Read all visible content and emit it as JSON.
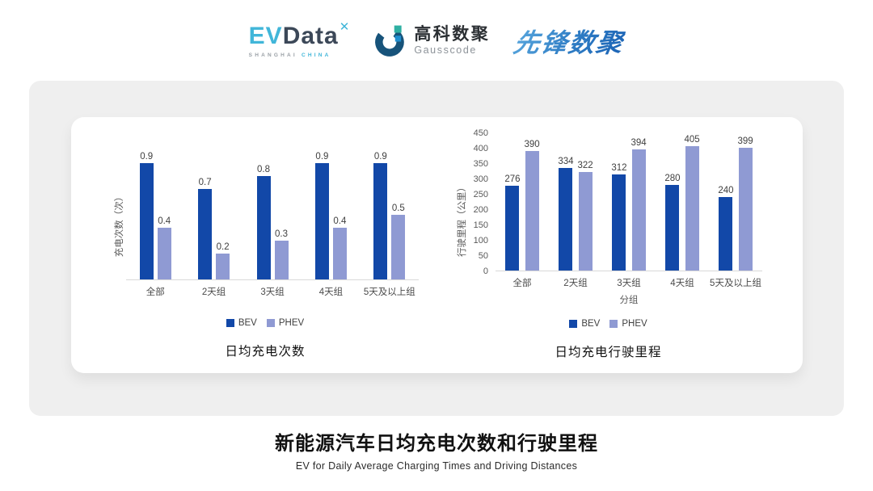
{
  "header": {
    "evdata": {
      "ev": "EV",
      "data": "Data",
      "x_icon": "✕",
      "sub_gray": "SHANGHAI",
      "sub_blue": "CHINA"
    },
    "gausscode": {
      "cn": "高科数聚",
      "en": "Gausscode"
    },
    "xianfeng": {
      "text": "先锋数聚"
    }
  },
  "colors": {
    "bev": "#1248a8",
    "phev": "#8f9ad3",
    "panel_gray": "#efefef",
    "axis_text": "#595959",
    "evdata_blue": "#41b6d9",
    "xianfeng_blue": "#2e7cc4"
  },
  "chart_data": [
    {
      "type": "bar",
      "title": "日均充电次数",
      "categories": [
        "全部",
        "2天组",
        "3天组",
        "4天组",
        "5天及以上组"
      ],
      "series": [
        {
          "name": "BEV",
          "color": "#1248a8",
          "values": [
            0.9,
            0.7,
            0.8,
            0.9,
            0.9
          ]
        },
        {
          "name": "PHEV",
          "color": "#8f9ad3",
          "values": [
            0.4,
            0.2,
            0.3,
            0.4,
            0.5
          ]
        }
      ],
      "xlabel": "",
      "ylabel": "充电次数（次）",
      "ylim": [
        0,
        1.0
      ],
      "yticks": [],
      "grid": false,
      "legend_position": "bottom",
      "data_labels": true
    },
    {
      "type": "bar",
      "title": "日均充电行驶里程",
      "categories": [
        "全部",
        "2天组",
        "3天组",
        "4天组",
        "5天及以上组"
      ],
      "series": [
        {
          "name": "BEV",
          "color": "#1248a8",
          "values": [
            276,
            334,
            312,
            280,
            240
          ]
        },
        {
          "name": "PHEV",
          "color": "#8f9ad3",
          "values": [
            390,
            322,
            394,
            405,
            399
          ]
        }
      ],
      "xlabel": "分组",
      "ylabel": "行驶里程（公里）",
      "ylim": [
        0,
        450
      ],
      "yticks": [
        0,
        50,
        100,
        150,
        200,
        250,
        300,
        350,
        400,
        450
      ],
      "grid": false,
      "legend_position": "bottom",
      "data_labels": true
    }
  ],
  "footer": {
    "title": "新能源汽车日均充电次数和行驶里程",
    "subtitle": "EV for Daily Average Charging Times and Driving Distances"
  }
}
